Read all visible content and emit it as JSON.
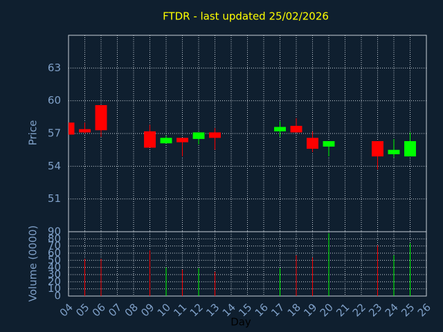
{
  "chart_data": {
    "type": "candlestick",
    "title": "FTDR - last updated 25/02/2026",
    "xlabel": "Day",
    "ylabel": "Price",
    "volume_label": "Volume (0000)",
    "x": [
      4,
      5,
      6,
      9,
      10,
      11,
      12,
      13,
      17,
      18,
      19,
      20,
      23,
      24,
      25
    ],
    "open": [
      58.0,
      57.4,
      59.6,
      57.2,
      56.1,
      56.6,
      56.5,
      57.1,
      57.2,
      57.7,
      56.6,
      55.8,
      56.3,
      55.1,
      54.9
    ],
    "high": [
      58.0,
      58.0,
      59.6,
      57.8,
      56.8,
      56.6,
      57.1,
      57.5,
      58.1,
      58.4,
      57.2,
      56.3,
      56.3,
      56.5,
      57.1
    ],
    "low": [
      56.9,
      57.0,
      56.7,
      55.7,
      56.1,
      54.9,
      56.0,
      55.5,
      56.7,
      57.1,
      55.3,
      54.9,
      53.7,
      54.8,
      54.9
    ],
    "close": [
      56.9,
      57.1,
      57.3,
      55.7,
      56.6,
      56.2,
      57.1,
      56.6,
      57.6,
      57.1,
      55.6,
      56.3,
      54.9,
      55.5,
      56.3
    ],
    "volume": [
      null,
      52,
      52,
      64,
      40,
      37,
      39,
      34,
      39,
      57,
      54,
      88,
      71,
      57,
      74
    ],
    "up_color": "#00ff00",
    "down_color": "#ff0000",
    "xlim": [
      4,
      26
    ],
    "xticks": [
      {
        "value": 4,
        "label": "04"
      },
      {
        "value": 5,
        "label": "05"
      },
      {
        "value": 6,
        "label": "06"
      },
      {
        "value": 7,
        "label": "07"
      },
      {
        "value": 8,
        "label": "08"
      },
      {
        "value": 9,
        "label": "09"
      },
      10,
      11,
      12,
      13,
      14,
      15,
      16,
      17,
      18,
      19,
      20,
      21,
      22,
      23,
      24,
      25,
      26
    ],
    "ylim": [
      48,
      66
    ],
    "yticks": [
      51,
      54,
      57,
      60,
      63
    ],
    "volume_lim": [
      0,
      90
    ],
    "volume_ticks": [
      0,
      10,
      20,
      30,
      40,
      50,
      60,
      70,
      80,
      90
    ],
    "grid": true
  }
}
